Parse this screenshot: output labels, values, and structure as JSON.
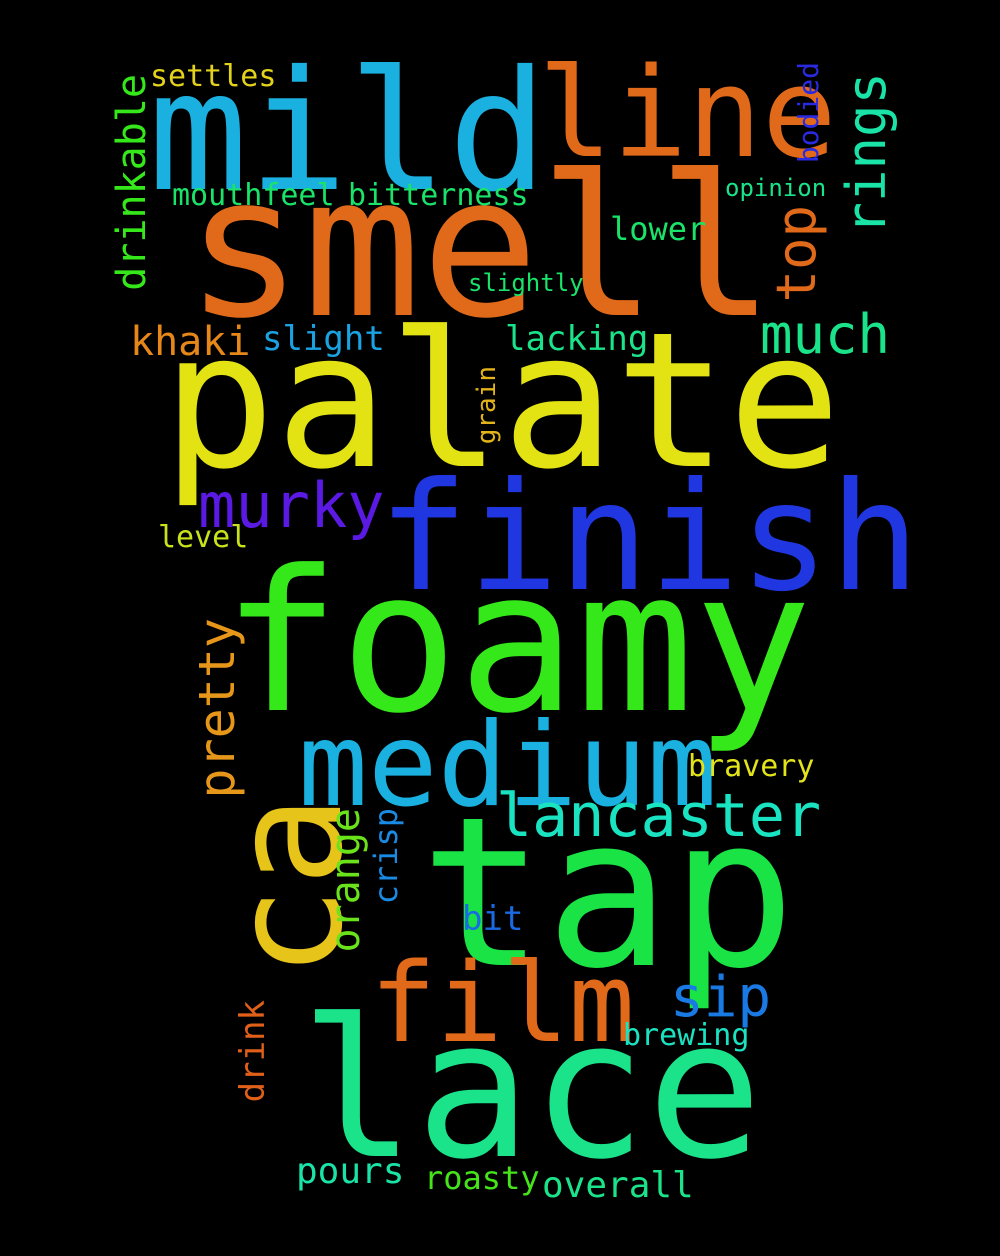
{
  "words": {
    "smell": {
      "text": "smell",
      "color": "#e06a1a"
    },
    "palate": {
      "text": "palate",
      "color": "#e3e314"
    },
    "foamy": {
      "text": "foamy",
      "color": "#35e81a"
    },
    "finish": {
      "text": "finish",
      "color": "#2036e0"
    },
    "mild": {
      "text": "mild",
      "color": "#1ab0e0"
    },
    "tap": {
      "text": "tap",
      "color": "#1ae345"
    },
    "lace": {
      "text": "lace",
      "color": "#1ae38a"
    },
    "medium": {
      "text": "medium",
      "color": "#1ab0e0"
    },
    "ca": {
      "text": "ca",
      "color": "#e6c419"
    },
    "line": {
      "text": "line",
      "color": "#e06a1a"
    },
    "film": {
      "text": "film",
      "color": "#e06a1a"
    },
    "lancaster": {
      "text": "lancaster",
      "color": "#1ae3c2"
    },
    "murky": {
      "text": "murky",
      "color": "#5a1ae3"
    },
    "much": {
      "text": "much",
      "color": "#1ae38a"
    },
    "rings": {
      "text": "rings",
      "color": "#1ae3a8"
    },
    "top": {
      "text": "top",
      "color": "#e06a1a"
    },
    "pretty": {
      "text": "pretty",
      "color": "#e6971a"
    },
    "sip": {
      "text": "sip",
      "color": "#1a7ae3"
    },
    "khaki": {
      "text": "khaki",
      "color": "#e6871a"
    },
    "drinkable": {
      "text": "drinkable",
      "color": "#35e81a"
    },
    "orange": {
      "text": "orange",
      "color": "#6ae31a"
    },
    "settles": {
      "text": "settles",
      "color": "#e3d21a"
    },
    "mouthfeel": {
      "text": "mouthfeel",
      "color": "#1ae36a"
    },
    "bitterness": {
      "text": "bitterness",
      "color": "#1ae36a"
    },
    "slight": {
      "text": "slight",
      "color": "#1aa3e3"
    },
    "lacking": {
      "text": "lacking",
      "color": "#1ae38a"
    },
    "bravery": {
      "text": "bravery",
      "color": "#e3e31a"
    },
    "crisp": {
      "text": "crisp",
      "color": "#1a8ae3"
    },
    "bit": {
      "text": "bit",
      "color": "#1a6ae3"
    },
    "lower": {
      "text": "lower",
      "color": "#1ae36a"
    },
    "bodied": {
      "text": "bodied",
      "color": "#2a2ae3"
    },
    "opinion": {
      "text": "opinion",
      "color": "#1ae38a"
    },
    "level": {
      "text": "level",
      "color": "#c8e31a"
    },
    "grain": {
      "text": "grain",
      "color": "#e3b41a"
    },
    "drink": {
      "text": "drink",
      "color": "#e0601a"
    },
    "brewing": {
      "text": "brewing",
      "color": "#1ae3c2"
    },
    "pours": {
      "text": "pours",
      "color": "#1ae3a8"
    },
    "roasty": {
      "text": "roasty",
      "color": "#45e31a"
    },
    "overall": {
      "text": "overall",
      "color": "#1ae38a"
    },
    "slightly": {
      "text": "slightly",
      "color": "#1ae36a"
    }
  }
}
